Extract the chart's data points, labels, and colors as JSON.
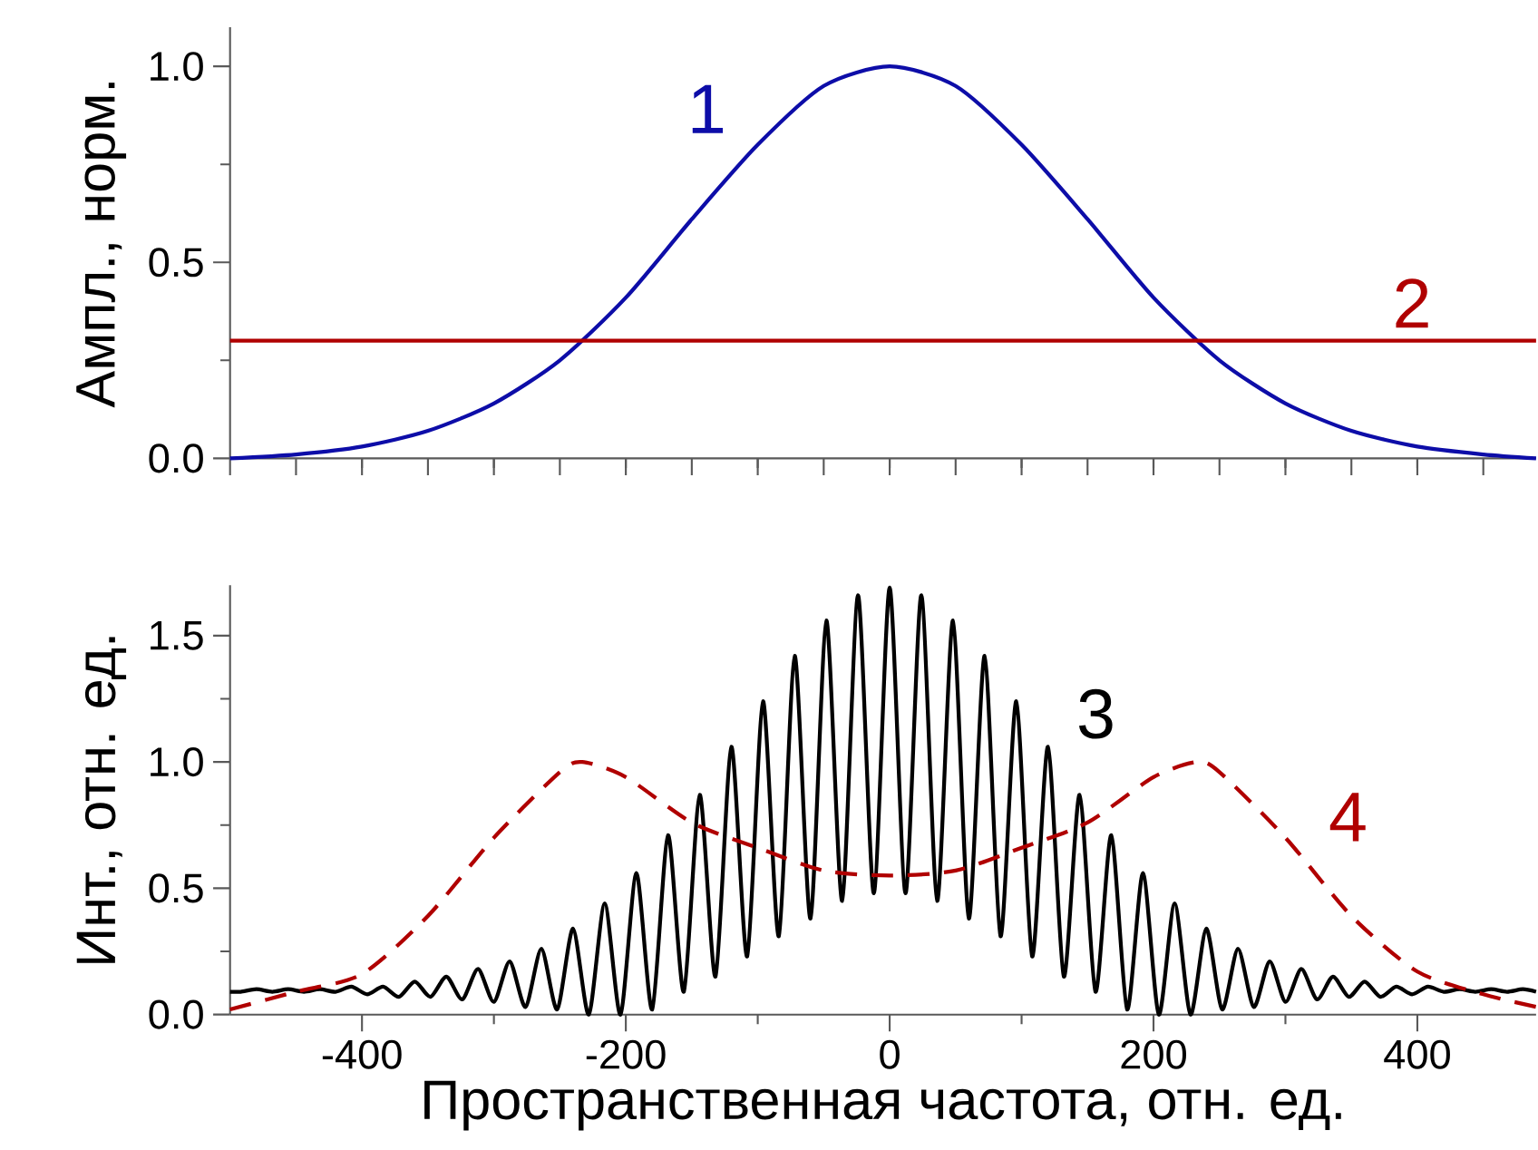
{
  "chart_data": [
    {
      "type": "line",
      "ylabel": "Ампл., норм.",
      "xlim": [
        -500,
        490
      ],
      "ylim": [
        0,
        1.1
      ],
      "xticks": [
        {
          "value": -400,
          "label": null
        },
        {
          "value": -300,
          "label": null
        },
        {
          "value": -200,
          "label": null
        },
        {
          "value": -100,
          "label": null
        },
        {
          "value": 0,
          "label": null
        },
        {
          "value": 100,
          "label": null
        },
        {
          "value": 200,
          "label": null
        },
        {
          "value": 300,
          "label": null
        },
        {
          "value": 400,
          "label": null
        }
      ],
      "yticks": [
        {
          "value": 0,
          "label": "0.0"
        },
        {
          "value": 0.25,
          "label": null
        },
        {
          "value": 0.5,
          "label": "0.5"
        },
        {
          "value": 0.75,
          "label": null
        },
        {
          "value": 1,
          "label": "1.0"
        }
      ],
      "tick_labels": "y",
      "grid": false,
      "legend": false,
      "series": [
        {
          "name": "1",
          "color": "#0d0da8",
          "line_style": "solid",
          "x": [
            -500,
            -450,
            -400,
            -350,
            -300,
            -250,
            -200,
            -150,
            -100,
            -50,
            0,
            50,
            100,
            150,
            200,
            250,
            300,
            350,
            400,
            450,
            490
          ],
          "values": [
            0.0,
            0.01,
            0.03,
            0.07,
            0.14,
            0.25,
            0.41,
            0.61,
            0.8,
            0.95,
            1.0,
            0.95,
            0.8,
            0.61,
            0.41,
            0.25,
            0.14,
            0.07,
            0.03,
            0.01,
            0.0
          ]
        },
        {
          "name": "2",
          "color": "#b00000",
          "line_style": "solid",
          "x": [
            -500,
            490
          ],
          "values": [
            0.3,
            0.3
          ]
        }
      ]
    },
    {
      "type": "line",
      "xlabel": "Пространственная частота, отн. ед.",
      "ylabel": "Инт., отн. ед.",
      "xlim": [
        -500,
        490
      ],
      "ylim": [
        0,
        1.7
      ],
      "xticks": [
        -400,
        {
          "value": -300,
          "label": null
        },
        -200,
        {
          "value": -100,
          "label": null
        },
        0,
        {
          "value": 100,
          "label": null
        },
        200,
        {
          "value": 300,
          "label": null
        },
        400
      ],
      "yticks": [
        {
          "value": 0,
          "label": "0.0"
        },
        {
          "value": 0.25,
          "label": null
        },
        {
          "value": 0.5,
          "label": "0.5"
        },
        {
          "value": 0.75,
          "label": null
        },
        {
          "value": 1,
          "label": "1.0"
        },
        {
          "value": 1.25,
          "label": null
        },
        {
          "value": 1.5,
          "label": "1.5"
        }
      ],
      "grid": false,
      "legend": false,
      "series": [
        {
          "name": "3",
          "color": "#000000",
          "line_style": "solid",
          "x": [
            -500,
            -492,
            -480,
            -468,
            -456,
            -444,
            -432,
            -420,
            -408,
            -396,
            -384,
            -372,
            -360,
            -348,
            -336,
            -324,
            -312,
            -300,
            -288,
            -276,
            -264,
            -252,
            -240,
            -228,
            -216,
            -204,
            -192,
            -180,
            -168,
            -156,
            -144,
            -132,
            -120,
            -108,
            -96,
            -84,
            -72,
            -60,
            -48,
            -36,
            -24,
            -12,
            0,
            12,
            24,
            36,
            48,
            60,
            72,
            84,
            96,
            108,
            120,
            132,
            144,
            156,
            168,
            180,
            192,
            204,
            216,
            228,
            240,
            252,
            264,
            276,
            288,
            300,
            312,
            324,
            336,
            348,
            360,
            372,
            384,
            396,
            408,
            420,
            432,
            444,
            456,
            468,
            480,
            490
          ],
          "values": [
            0.09,
            0.09,
            0.1,
            0.09,
            0.1,
            0.09,
            0.1,
            0.09,
            0.11,
            0.08,
            0.11,
            0.07,
            0.13,
            0.07,
            0.15,
            0.06,
            0.18,
            0.05,
            0.21,
            0.03,
            0.26,
            0.02,
            0.34,
            0.0,
            0.44,
            0.0,
            0.56,
            0.02,
            0.71,
            0.09,
            0.87,
            0.15,
            1.06,
            0.23,
            1.24,
            0.31,
            1.42,
            0.38,
            1.56,
            0.45,
            1.66,
            0.48,
            1.69,
            0.48,
            1.66,
            0.45,
            1.56,
            0.38,
            1.42,
            0.31,
            1.24,
            0.23,
            1.06,
            0.15,
            0.87,
            0.09,
            0.71,
            0.02,
            0.56,
            0.0,
            0.44,
            0.0,
            0.34,
            0.02,
            0.26,
            0.03,
            0.21,
            0.05,
            0.18,
            0.06,
            0.15,
            0.07,
            0.13,
            0.07,
            0.11,
            0.08,
            0.11,
            0.09,
            0.1,
            0.09,
            0.1,
            0.09,
            0.1,
            0.09
          ]
        },
        {
          "name": "4",
          "color": "#b00000",
          "line_style": "dashed",
          "x": [
            -500,
            -450,
            -400,
            -350,
            -300,
            -250,
            -233,
            -200,
            -150,
            -100,
            -50,
            0,
            50,
            100,
            150,
            200,
            233,
            250,
            300,
            350,
            400,
            450,
            490
          ],
          "values": [
            0.02,
            0.09,
            0.16,
            0.39,
            0.7,
            0.96,
            1.0,
            0.94,
            0.76,
            0.66,
            0.57,
            0.55,
            0.57,
            0.66,
            0.76,
            0.94,
            1.0,
            0.96,
            0.7,
            0.39,
            0.17,
            0.08,
            0.03
          ]
        }
      ]
    }
  ]
}
